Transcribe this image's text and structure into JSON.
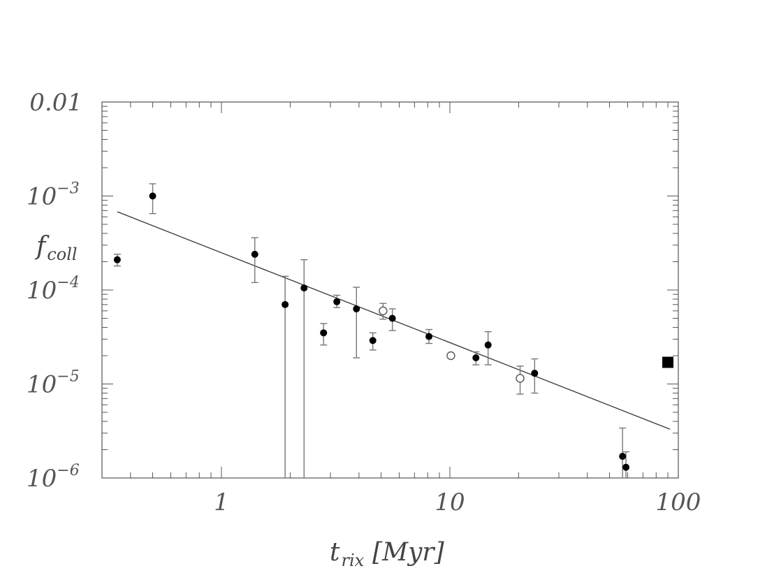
{
  "chart_data": {
    "type": "scatter",
    "xlabel": "t",
    "xlabel_sub": "rix",
    "xlabel_unit": "[Myr]",
    "ylabel": "f",
    "ylabel_sub": "coll",
    "xscale": "log",
    "yscale": "log",
    "xlim": [
      0.3,
      100
    ],
    "ylim": [
      1e-06,
      0.01
    ],
    "grid": false,
    "x_tick_labels": [
      {
        "value": 1,
        "label": "1"
      },
      {
        "value": 10,
        "label": "10"
      },
      {
        "value": 100,
        "label": "100"
      }
    ],
    "y_tick_labels": [
      {
        "value": 1e-06,
        "mantissa": "10",
        "exponent": "−6"
      },
      {
        "value": 1e-05,
        "mantissa": "10",
        "exponent": "−5"
      },
      {
        "value": 0.0001,
        "mantissa": "10",
        "exponent": "−4"
      },
      {
        "value": 0.001,
        "mantissa": "10",
        "exponent": "−3"
      },
      {
        "value": 0.01,
        "plain": "0.01"
      }
    ],
    "series": [
      {
        "marker": "filled-circle",
        "color": "#000000",
        "points": [
          {
            "x": 0.35,
            "y": 0.00021,
            "ylo": 0.00018,
            "yhi": 0.00024
          },
          {
            "x": 0.5,
            "y": 0.001,
            "ylo": 0.00065,
            "yhi": 0.00135
          },
          {
            "x": 1.4,
            "y": 0.00024,
            "ylo": 0.00012,
            "yhi": 0.00036
          },
          {
            "x": 1.9,
            "y": 7e-05,
            "ylo": 1e-06,
            "yhi": 0.00014
          },
          {
            "x": 2.3,
            "y": 0.000105,
            "ylo": 1e-06,
            "yhi": 0.00021
          },
          {
            "x": 2.8,
            "y": 3.5e-05,
            "ylo": 2.6e-05,
            "yhi": 4.4e-05
          },
          {
            "x": 3.2,
            "y": 7.5e-05,
            "ylo": 6.5e-05,
            "yhi": 8.8e-05
          },
          {
            "x": 3.9,
            "y": 6.3e-05,
            "ylo": 1.9e-05,
            "yhi": 0.000107
          },
          {
            "x": 4.6,
            "y": 2.9e-05,
            "ylo": 2.3e-05,
            "yhi": 3.5e-05
          },
          {
            "x": 5.6,
            "y": 5e-05,
            "ylo": 3.7e-05,
            "yhi": 6.3e-05
          },
          {
            "x": 8.1,
            "y": 3.2e-05,
            "ylo": 2.7e-05,
            "yhi": 3.8e-05
          },
          {
            "x": 13.0,
            "y": 1.9e-05,
            "ylo": 1.6e-05,
            "yhi": 2.2e-05
          },
          {
            "x": 14.7,
            "y": 2.6e-05,
            "ylo": 1.6e-05,
            "yhi": 3.6e-05
          },
          {
            "x": 23.5,
            "y": 1.3e-05,
            "ylo": 8e-06,
            "yhi": 1.85e-05
          },
          {
            "x": 57,
            "y": 1.7e-06,
            "ylo": 1e-06,
            "yhi": 3.4e-06
          },
          {
            "x": 59,
            "y": 1.3e-06,
            "ylo": 1e-06,
            "yhi": 1.9e-06
          }
        ]
      },
      {
        "marker": "open-circle",
        "color": "#555555",
        "points": [
          {
            "x": 5.1,
            "y": 6e-05,
            "ylo": 4.9e-05,
            "yhi": 7.2e-05
          },
          {
            "x": 10.1,
            "y": 2e-05
          },
          {
            "x": 20.3,
            "y": 1.15e-05,
            "ylo": 7.8e-06,
            "yhi": 1.55e-05
          }
        ]
      },
      {
        "marker": "filled-square",
        "color": "#000000",
        "points": [
          {
            "x": 90,
            "y": 1.7e-05
          }
        ]
      }
    ],
    "fit_line": {
      "type": "power-law",
      "color": "#333333",
      "points": [
        {
          "x": 0.35,
          "y": 0.00068
        },
        {
          "x": 92,
          "y": 3.3e-06
        }
      ]
    }
  }
}
